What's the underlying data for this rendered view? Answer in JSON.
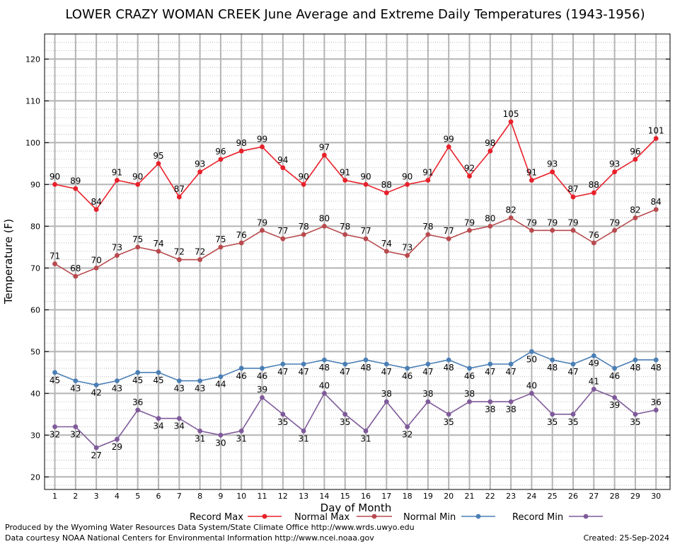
{
  "chart_data": {
    "type": "line",
    "title": "LOWER CRAZY WOMAN CREEK June Average and Extreme Daily Temperatures (1943-1956)",
    "xlabel": "Day of Month",
    "ylabel": "Temperature (F)",
    "ylim": [
      17,
      126
    ],
    "y_ticks": [
      20,
      30,
      40,
      50,
      60,
      70,
      80,
      90,
      100,
      110,
      120
    ],
    "x": [
      1,
      2,
      3,
      4,
      5,
      6,
      7,
      8,
      9,
      10,
      11,
      12,
      13,
      14,
      15,
      16,
      17,
      18,
      19,
      20,
      21,
      22,
      23,
      24,
      25,
      26,
      27,
      28,
      29,
      30
    ],
    "grid": true,
    "legend_position": "bottom",
    "series": [
      {
        "name": "Record Max",
        "color": "#e8202a",
        "values": [
          90,
          89,
          84,
          91,
          90,
          95,
          87,
          93,
          96,
          98,
          99,
          94,
          90,
          97,
          91,
          90,
          88,
          90,
          91,
          99,
          92,
          98,
          105,
          91,
          93,
          87,
          88,
          93,
          96,
          101
        ]
      },
      {
        "name": "Normal Max",
        "color": "#b84a4e",
        "values": [
          71,
          68,
          70,
          73,
          75,
          74,
          72,
          72,
          75,
          76,
          79,
          77,
          78,
          80,
          78,
          77,
          74,
          73,
          78,
          77,
          79,
          80,
          82,
          79,
          79,
          79,
          76,
          79,
          82,
          84
        ]
      },
      {
        "name": "Normal Min",
        "color": "#4a7fb5",
        "values": [
          45,
          43,
          42,
          43,
          45,
          45,
          43,
          43,
          44,
          46,
          46,
          47,
          47,
          48,
          47,
          48,
          47,
          46,
          47,
          48,
          46,
          47,
          47,
          50,
          48,
          47,
          49,
          46,
          48,
          48
        ]
      },
      {
        "name": "Record Min",
        "color": "#7f5a9a",
        "values": [
          32,
          32,
          27,
          29,
          36,
          34,
          34,
          31,
          30,
          31,
          39,
          35,
          31,
          40,
          35,
          31,
          38,
          32,
          38,
          35,
          38,
          38,
          38,
          40,
          35,
          35,
          41,
          39,
          35,
          36
        ]
      }
    ]
  },
  "footer": {
    "left_line1": "Produced by the Wyoming Water Resources Data System/State Climate Office http://www.wrds.uwyo.edu",
    "left_line2": "Data courtesy NOAA National Centers for Environmental Information http://www.ncei.noaa.gov",
    "created": "Created:  25-Sep-2024"
  }
}
